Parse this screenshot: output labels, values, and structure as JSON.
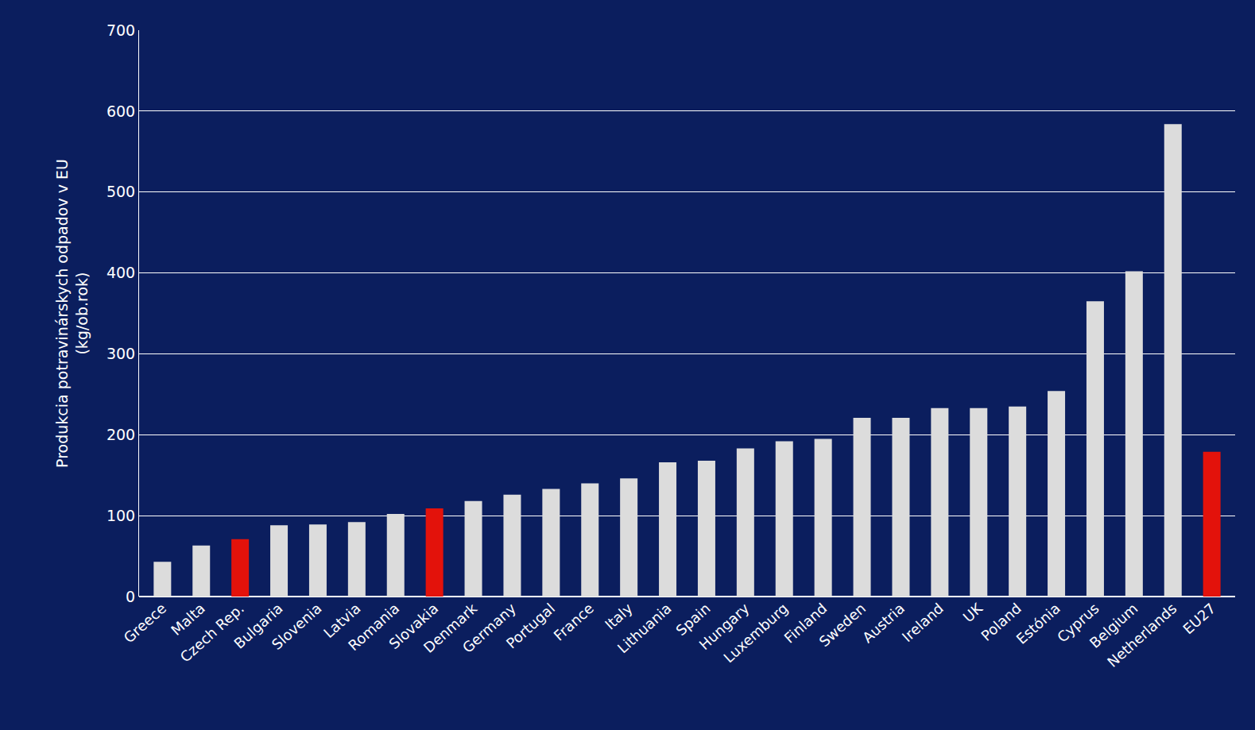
{
  "chart_data": {
    "type": "bar",
    "y_label": "Produkcia potravinárskych odpadov v EU (kg/ob.rok)",
    "categories": [
      "Greece",
      "Malta",
      "Czech Rep.",
      "Bulgaria",
      "Slovenia",
      "Latvia",
      "Romania",
      "Slovakia",
      "Denmark",
      "Germany",
      "Portugal",
      "France",
      "Italy",
      "Lithuania",
      "Spain",
      "Hungary",
      "Luxemburg",
      "Finland",
      "Sweden",
      "Austria",
      "Ireland",
      "UK",
      "Poland",
      "Estónia",
      "Cyprus",
      "Belgium",
      "Netherlands",
      "EU27"
    ],
    "values": [
      43,
      63,
      71,
      88,
      89,
      92,
      102,
      109,
      118,
      126,
      133,
      140,
      146,
      166,
      168,
      183,
      192,
      195,
      221,
      221,
      233,
      233,
      235,
      254,
      365,
      402,
      584,
      179
    ],
    "colors": [
      "#dcdcdc",
      "#dcdcdc",
      "#e3120b",
      "#dcdcdc",
      "#dcdcdc",
      "#dcdcdc",
      "#dcdcdc",
      "#e3120b",
      "#dcdcdc",
      "#dcdcdc",
      "#dcdcdc",
      "#dcdcdc",
      "#dcdcdc",
      "#dcdcdc",
      "#dcdcdc",
      "#dcdcdc",
      "#dcdcdc",
      "#dcdcdc",
      "#dcdcdc",
      "#dcdcdc",
      "#dcdcdc",
      "#dcdcdc",
      "#dcdcdc",
      "#dcdcdc",
      "#dcdcdc",
      "#dcdcdc",
      "#dcdcdc",
      "#e3120b"
    ],
    "ylim": [
      0,
      700
    ],
    "yticks": [
      0,
      100,
      200,
      300,
      400,
      500,
      600,
      700
    ],
    "grid": true
  }
}
